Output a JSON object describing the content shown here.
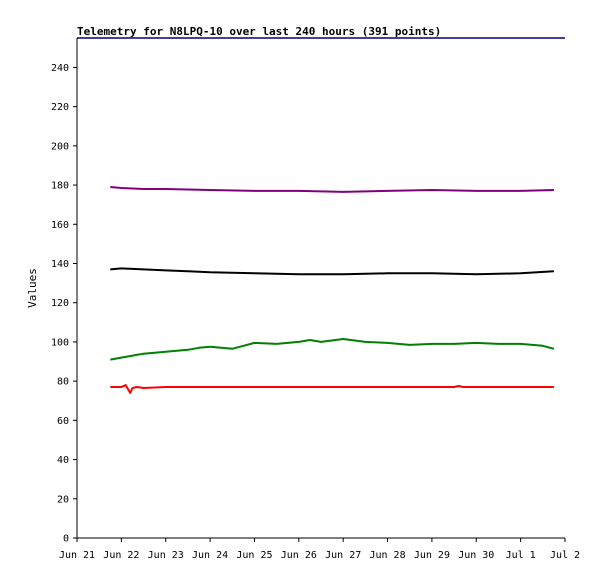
{
  "chart_data": {
    "type": "line",
    "title": "Telemetry for N8LPQ-10 over last 240 hours (391 points)",
    "xlabel": "",
    "ylabel": "Values",
    "x_range": [
      "Jun 21",
      "Jul 2"
    ],
    "x_ticks": [
      "Jun 21",
      "Jun 22",
      "Jun 23",
      "Jun 24",
      "Jun 25",
      "Jun 26",
      "Jun 27",
      "Jun 28",
      "Jun 29",
      "Jun 30",
      "Jul 1",
      "Jul 2"
    ],
    "ylim": [
      0,
      255
    ],
    "y_ticks": [
      0,
      20,
      40,
      60,
      80,
      100,
      120,
      140,
      160,
      180,
      200,
      220,
      240
    ],
    "grid": false,
    "legend": "none",
    "series": [
      {
        "color": "#800080",
        "x": [
          0.75,
          1.0,
          1.5,
          1.75,
          2.0,
          3.0,
          4.0,
          5.0,
          6.0,
          7.0,
          8.0,
          9.0,
          10.0,
          10.75
        ],
        "y": [
          179,
          178.5,
          178,
          178,
          178,
          177.5,
          177,
          177,
          176.5,
          177,
          177.5,
          177,
          177,
          177.5
        ]
      },
      {
        "color": "#000000",
        "x": [
          0.75,
          1.0,
          1.5,
          2.0,
          2.5,
          3.0,
          4.0,
          5.0,
          6.0,
          7.0,
          8.0,
          9.0,
          10.0,
          10.75
        ],
        "y": [
          137,
          137.5,
          137,
          136.5,
          136,
          135.5,
          135,
          134.5,
          134.5,
          135,
          135,
          134.5,
          135,
          136
        ]
      },
      {
        "color": "#008000",
        "x": [
          0.75,
          1.0,
          1.25,
          1.5,
          2.0,
          2.5,
          2.75,
          3.0,
          3.25,
          3.5,
          3.75,
          4.0,
          4.5,
          5.0,
          5.25,
          5.5,
          6.0,
          6.5,
          7.0,
          7.5,
          8.0,
          8.5,
          9.0,
          9.5,
          10.0,
          10.5,
          10.75
        ],
        "y": [
          91,
          92,
          93,
          94,
          95,
          96,
          97,
          97.5,
          97,
          96.5,
          98,
          99.5,
          99,
          100,
          101,
          100,
          101.5,
          100,
          99.5,
          98.5,
          99,
          99,
          99.5,
          99,
          99,
          98,
          96.5
        ]
      },
      {
        "color": "#ff0000",
        "x": [
          0.75,
          1.0,
          1.1,
          1.2,
          1.25,
          1.35,
          1.5,
          2.0,
          3.0,
          4.0,
          5.0,
          6.0,
          7.0,
          8.0,
          8.5,
          8.6,
          8.7,
          9.0,
          10.0,
          10.75
        ],
        "y": [
          77,
          77,
          78,
          74,
          76.5,
          77,
          76.5,
          77,
          77,
          77,
          77,
          77,
          77,
          77,
          77,
          77.5,
          77,
          77,
          77,
          77
        ]
      }
    ]
  }
}
